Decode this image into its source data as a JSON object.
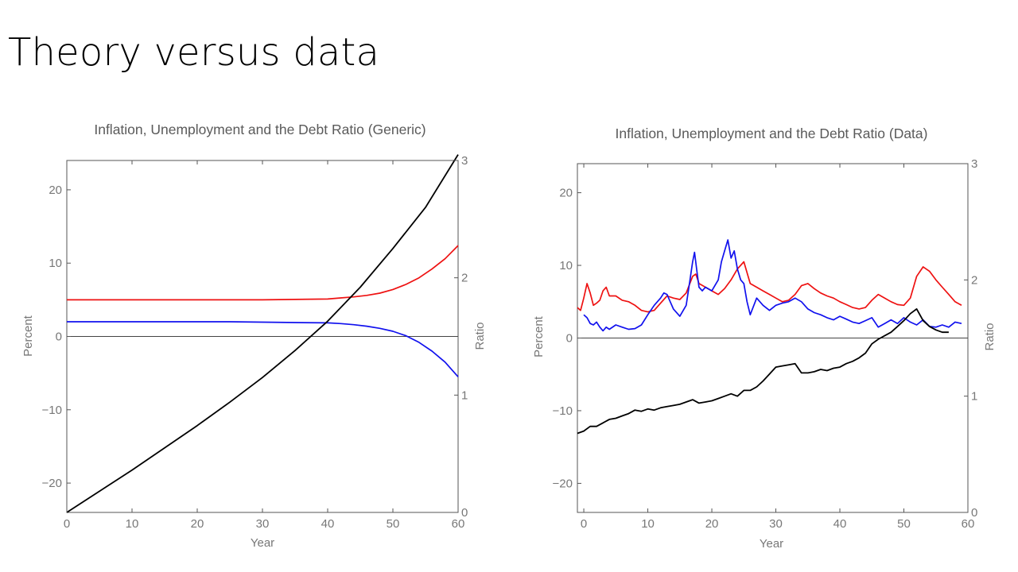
{
  "slide": {
    "title": "Theory versus data"
  },
  "colors": {
    "inflation": "#ee1111",
    "unemployment": "#1111ee",
    "debt_ratio": "#000000",
    "axis": "#555555",
    "text": "#777777"
  },
  "chart_data": [
    {
      "type": "line",
      "title": "Inflation, Unemployment and the Debt Ratio (Generic)",
      "xlabel": "Year",
      "ylabel": "Percent",
      "y2label": "Ratio",
      "xlim": [
        0,
        60
      ],
      "ylim": [
        -24,
        24
      ],
      "y2lim": [
        0,
        3
      ],
      "xticks": [
        0,
        10,
        20,
        30,
        40,
        50,
        60
      ],
      "yticks": [
        -20,
        -10,
        0,
        10,
        20
      ],
      "y2ticks": [
        0,
        1,
        2,
        3
      ],
      "series": [
        {
          "name": "Inflation",
          "color": "red",
          "axis": "left",
          "x": [
            0,
            5,
            10,
            15,
            20,
            25,
            30,
            35,
            40,
            42,
            44,
            46,
            48,
            50,
            52,
            54,
            56,
            58,
            60
          ],
          "y": [
            5.0,
            5.0,
            5.0,
            5.0,
            5.0,
            5.0,
            5.0,
            5.05,
            5.1,
            5.25,
            5.4,
            5.6,
            5.9,
            6.4,
            7.1,
            8.0,
            9.2,
            10.6,
            12.4
          ]
        },
        {
          "name": "Unemployment",
          "color": "blue",
          "axis": "left",
          "x": [
            0,
            5,
            10,
            15,
            20,
            25,
            30,
            35,
            40,
            42,
            44,
            46,
            48,
            50,
            52,
            54,
            56,
            58,
            60
          ],
          "y": [
            2.0,
            2.0,
            2.0,
            2.0,
            2.0,
            2.0,
            1.95,
            1.9,
            1.85,
            1.75,
            1.6,
            1.4,
            1.1,
            0.7,
            0.1,
            -0.8,
            -2.0,
            -3.5,
            -5.5
          ]
        },
        {
          "name": "Debt ratio",
          "color": "black",
          "axis": "right",
          "x": [
            0,
            5,
            10,
            15,
            20,
            25,
            30,
            35,
            40,
            45,
            50,
            55,
            60
          ],
          "y": [
            0.0,
            0.18,
            0.36,
            0.55,
            0.74,
            0.94,
            1.15,
            1.38,
            1.63,
            1.92,
            2.25,
            2.6,
            3.05
          ]
        }
      ]
    },
    {
      "type": "line",
      "title": "Inflation, Unemployment and the Debt Ratio (Data)",
      "xlabel": "Year",
      "ylabel": "Percent",
      "y2label": "Ratio",
      "xlim": [
        -1,
        60
      ],
      "ylim": [
        -24,
        24
      ],
      "y2lim": [
        0,
        3
      ],
      "xticks": [
        0,
        10,
        20,
        30,
        40,
        50,
        60
      ],
      "yticks": [
        -20,
        -10,
        0,
        10,
        20
      ],
      "y2ticks": [
        0,
        1,
        2,
        3
      ],
      "series": [
        {
          "name": "Inflation",
          "color": "red",
          "axis": "left",
          "x": [
            -1,
            -0.5,
            0,
            0.5,
            1,
            1.5,
            2,
            2.5,
            3,
            3.5,
            4,
            5,
            6,
            7,
            8,
            9,
            10,
            11,
            12,
            13,
            14,
            15,
            16,
            17,
            17.5,
            18,
            19,
            20,
            21,
            22,
            23,
            24,
            25,
            26,
            27,
            28,
            29,
            30,
            31,
            32,
            33,
            34,
            35,
            36,
            37,
            38,
            39,
            40,
            41,
            42,
            43,
            44,
            45,
            46,
            47,
            48,
            49,
            50,
            51,
            52,
            53,
            54,
            55,
            56,
            57,
            58,
            59
          ],
          "y": [
            4.2,
            3.8,
            5.5,
            7.5,
            6.2,
            4.5,
            4.8,
            5.2,
            6.5,
            7.0,
            5.8,
            5.8,
            5.2,
            5.0,
            4.5,
            3.8,
            3.6,
            3.8,
            4.8,
            5.8,
            5.5,
            5.3,
            6.2,
            8.5,
            8.8,
            7.5,
            7.0,
            6.5,
            6.0,
            6.8,
            8.0,
            9.5,
            10.5,
            7.5,
            7.0,
            6.5,
            6.0,
            5.5,
            5.0,
            5.2,
            6.0,
            7.2,
            7.5,
            6.8,
            6.2,
            5.8,
            5.5,
            5.0,
            4.6,
            4.2,
            4.0,
            4.2,
            5.2,
            6.0,
            5.5,
            5.0,
            4.6,
            4.5,
            5.5,
            8.5,
            9.8,
            9.2,
            8.0,
            7.0,
            6.0,
            5.0,
            4.5
          ]
        },
        {
          "name": "Unemployment",
          "color": "blue",
          "axis": "left",
          "x": [
            0,
            0.5,
            1,
            1.5,
            2,
            2.5,
            3,
            3.5,
            4,
            5,
            6,
            7,
            8,
            9,
            10,
            11,
            12,
            12.5,
            13,
            13.5,
            14,
            15,
            16,
            16.5,
            17,
            17.3,
            17.7,
            18,
            18.5,
            19,
            20,
            21,
            21.5,
            22,
            22.5,
            23,
            23.5,
            24,
            24.5,
            25,
            25.5,
            26,
            27,
            28,
            29,
            30,
            31,
            32,
            33,
            34,
            35,
            36,
            37,
            38,
            39,
            40,
            41,
            42,
            43,
            44,
            45,
            46,
            47,
            48,
            49,
            50,
            51,
            52,
            53,
            54,
            55,
            56,
            57,
            58,
            59
          ],
          "y": [
            3.2,
            2.8,
            2.0,
            1.8,
            2.2,
            1.5,
            1.0,
            1.5,
            1.2,
            1.8,
            1.5,
            1.2,
            1.3,
            1.8,
            3.2,
            4.5,
            5.5,
            6.2,
            6.0,
            5.0,
            4.0,
            3.0,
            4.5,
            7.5,
            10.5,
            11.8,
            9.0,
            7.0,
            6.5,
            7.0,
            6.5,
            8.0,
            10.5,
            12.0,
            13.5,
            11.0,
            12.0,
            9.5,
            8.0,
            7.5,
            5.0,
            3.2,
            5.5,
            4.5,
            3.8,
            4.5,
            4.8,
            5.0,
            5.5,
            5.0,
            4.0,
            3.5,
            3.2,
            2.8,
            2.5,
            3.0,
            2.6,
            2.2,
            2.0,
            2.4,
            2.8,
            1.5,
            2.0,
            2.5,
            2.0,
            2.8,
            2.2,
            1.8,
            2.5,
            1.6,
            1.5,
            1.8,
            1.5,
            2.2,
            2.0
          ]
        },
        {
          "name": "Debt ratio",
          "color": "black",
          "axis": "right",
          "x": [
            -1,
            0,
            1,
            2,
            3,
            4,
            5,
            6,
            7,
            8,
            9,
            10,
            11,
            12,
            13,
            14,
            15,
            16,
            17,
            18,
            19,
            20,
            21,
            22,
            23,
            24,
            25,
            26,
            27,
            28,
            29,
            30,
            31,
            32,
            33,
            34,
            35,
            36,
            37,
            38,
            39,
            40,
            41,
            42,
            43,
            44,
            45,
            46,
            47,
            48,
            49,
            50,
            51,
            52,
            53,
            54,
            55,
            56,
            57
          ],
          "y": [
            0.68,
            0.7,
            0.74,
            0.74,
            0.77,
            0.8,
            0.81,
            0.83,
            0.85,
            0.88,
            0.87,
            0.89,
            0.88,
            0.9,
            0.91,
            0.92,
            0.93,
            0.95,
            0.97,
            0.94,
            0.95,
            0.96,
            0.98,
            1.0,
            1.02,
            1.0,
            1.05,
            1.05,
            1.08,
            1.13,
            1.19,
            1.25,
            1.26,
            1.27,
            1.28,
            1.2,
            1.2,
            1.21,
            1.23,
            1.22,
            1.24,
            1.25,
            1.28,
            1.3,
            1.33,
            1.37,
            1.45,
            1.49,
            1.52,
            1.55,
            1.6,
            1.65,
            1.71,
            1.75,
            1.65,
            1.6,
            1.57,
            1.55,
            1.55
          ]
        }
      ]
    }
  ]
}
